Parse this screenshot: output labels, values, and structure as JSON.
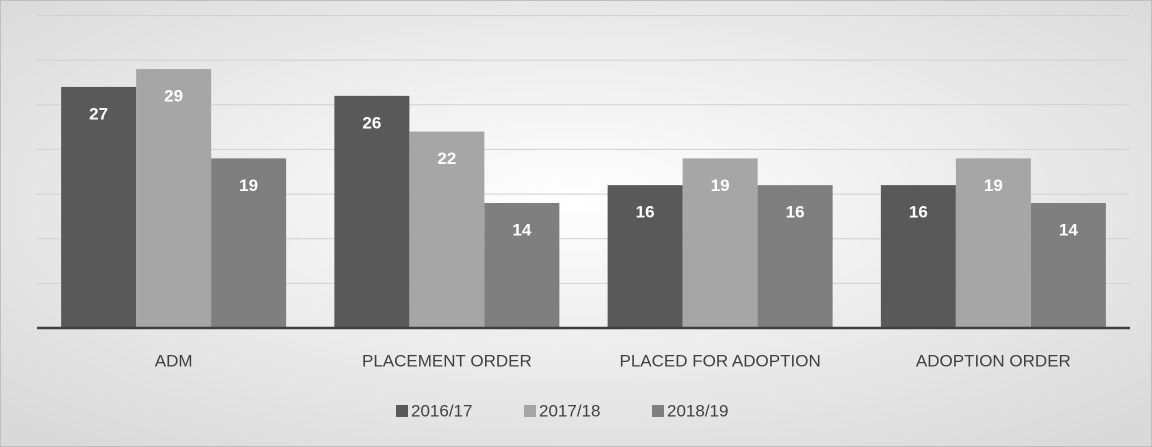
{
  "chart_data": {
    "type": "bar",
    "categories": [
      "ADM",
      "PLACEMENT ORDER",
      "PLACED FOR ADOPTION",
      "ADOPTION ORDER"
    ],
    "series": [
      {
        "name": "2016/17",
        "color": "#595959",
        "values": [
          27,
          26,
          16,
          16
        ]
      },
      {
        "name": "2017/18",
        "color": "#a6a6a6",
        "values": [
          29,
          22,
          19,
          19
        ]
      },
      {
        "name": "2018/19",
        "color": "#7f7f7f",
        "values": [
          19,
          14,
          16,
          14
        ]
      }
    ],
    "ylim": [
      0,
      35
    ],
    "yticks": [
      0,
      5,
      10,
      15,
      20,
      25,
      30,
      35
    ],
    "grid": true,
    "legend": "bottom"
  }
}
